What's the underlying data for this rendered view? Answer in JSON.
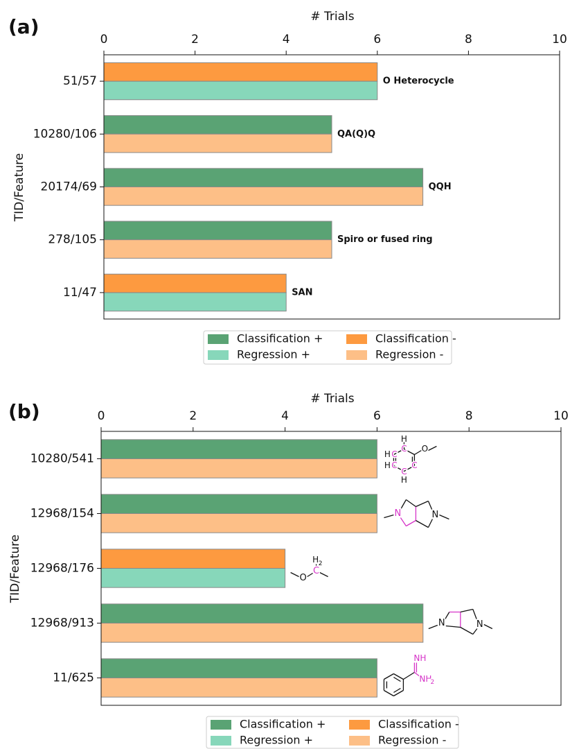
{
  "chart_data": [
    {
      "type": "barh",
      "title": "(a)",
      "xlabel": "# Trials",
      "ylabel": "TID/Feature",
      "categories": [
        "51/57",
        "10280/106",
        "20174/69",
        "278/105",
        "11/47"
      ],
      "series": [
        {
          "name": "Classification +",
          "color": "#5aa374",
          "values": [
            null,
            5,
            7,
            5,
            null
          ]
        },
        {
          "name": "Regression +",
          "color": "#87d7ba",
          "values": [
            6,
            null,
            null,
            null,
            4
          ]
        },
        {
          "name": "Classification -",
          "color": "#fd9a40",
          "values": [
            6,
            null,
            null,
            null,
            4
          ]
        },
        {
          "name": "Regression -",
          "color": "#fdbf87",
          "values": [
            null,
            5,
            7,
            5,
            null
          ]
        }
      ],
      "annotations": [
        "O Heterocycle",
        "QA(Q)Q",
        "QQH",
        "Spiro or fused ring",
        "SAN"
      ],
      "xlim": [
        0,
        10
      ],
      "xticks": [
        0,
        2,
        4,
        6,
        8,
        10
      ]
    },
    {
      "type": "barh",
      "title": "(b)",
      "xlabel": "# Trials",
      "ylabel": "TID/Feature",
      "categories": [
        "10280/541",
        "12968/154",
        "12968/176",
        "12968/913",
        "11/625"
      ],
      "series": [
        {
          "name": "Classification +",
          "color": "#5aa374",
          "values": [
            6,
            6,
            null,
            7,
            6
          ]
        },
        {
          "name": "Regression +",
          "color": "#87d7ba",
          "values": [
            null,
            null,
            4,
            null,
            null
          ]
        },
        {
          "name": "Classification -",
          "color": "#fd9a40",
          "values": [
            null,
            null,
            4,
            null,
            null
          ]
        },
        {
          "name": "Regression -",
          "color": "#fdbf87",
          "values": [
            6,
            6,
            null,
            7,
            6
          ]
        }
      ],
      "structures": [
        [
          "H",
          "C",
          "O",
          "H",
          "C",
          "H",
          "C",
          "C",
          "H",
          "C"
        ],
        [
          "N",
          "N"
        ],
        [
          "H",
          "2",
          "O",
          "C"
        ],
        [
          "N",
          "N"
        ],
        [
          "NH",
          "NH",
          "2"
        ]
      ],
      "xlim": [
        0,
        10
      ],
      "xticks": [
        0,
        2,
        4,
        6,
        8,
        10
      ]
    }
  ]
}
